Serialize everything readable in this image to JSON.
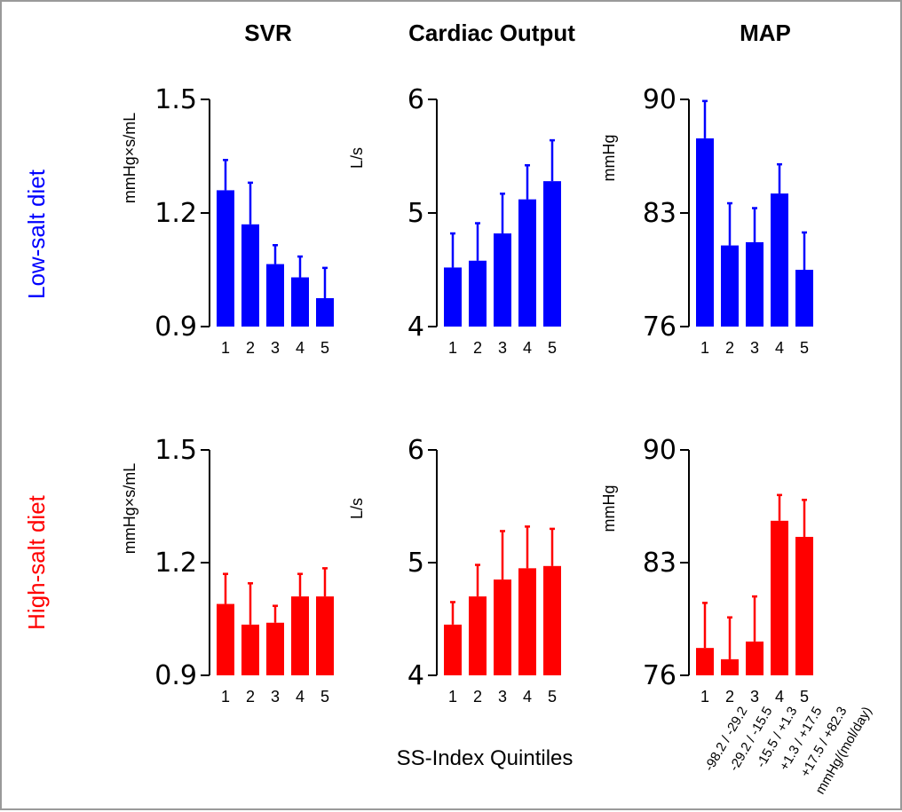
{
  "figure": {
    "column_titles": [
      "SVR",
      "Cardiac Output",
      "MAP"
    ],
    "row_labels": [
      "Low-salt diet",
      "High-salt diet"
    ],
    "x_axis_label": "SS-Index Quintiles",
    "quintile_labels": [
      "-98.2 / -29.2",
      "-29.2 / -15.5",
      "-15.5 / +1.3",
      "+1.3 / +17.5",
      "+17.5 / +82.3",
      "mmHg/(mol/day)"
    ]
  },
  "colors": {
    "low_salt": "#0000ff",
    "high_salt": "#ff0000",
    "axis": "#000000",
    "frame": "#9a9a9a"
  },
  "chart_data": [
    {
      "type": "bar",
      "title": "SVR",
      "row": "Low-salt diet",
      "color": "#0000ff",
      "categories": [
        "1",
        "2",
        "3",
        "4",
        "5"
      ],
      "values": [
        1.26,
        1.17,
        1.065,
        1.03,
        0.975
      ],
      "errors": [
        0.08,
        0.11,
        0.05,
        0.055,
        0.08
      ],
      "ylabel": "mmHg×s/mL",
      "ylim": [
        0.9,
        1.5
      ],
      "yticks": [
        "0.9",
        "1.2",
        "1.5"
      ]
    },
    {
      "type": "bar",
      "title": "Cardiac Output",
      "row": "Low-salt diet",
      "color": "#0000ff",
      "categories": [
        "1",
        "2",
        "3",
        "4",
        "5"
      ],
      "values": [
        4.52,
        4.58,
        4.82,
        5.12,
        5.28
      ],
      "errors": [
        0.3,
        0.33,
        0.35,
        0.3,
        0.36
      ],
      "ylabel": "L/s",
      "ylim": [
        4,
        6
      ],
      "yticks": [
        "4",
        "5",
        "6"
      ]
    },
    {
      "type": "bar",
      "title": "MAP",
      "row": "Low-salt diet",
      "color": "#0000ff",
      "categories": [
        "1",
        "2",
        "3",
        "4",
        "5"
      ],
      "values": [
        87.6,
        81.0,
        81.2,
        84.2,
        79.5
      ],
      "errors": [
        2.3,
        2.6,
        2.1,
        1.8,
        2.3
      ],
      "ylabel": "mmHg",
      "ylim": [
        76,
        90
      ],
      "yticks": [
        "76",
        "83",
        "90"
      ]
    },
    {
      "type": "bar",
      "title": "SVR",
      "row": "High-salt diet",
      "color": "#ff0000",
      "categories": [
        "1",
        "2",
        "3",
        "4",
        "5"
      ],
      "values": [
        1.09,
        1.035,
        1.04,
        1.11,
        1.11
      ],
      "errors": [
        0.08,
        0.11,
        0.045,
        0.06,
        0.075
      ],
      "ylabel": "mmHg×s/mL",
      "ylim": [
        0.9,
        1.5
      ],
      "yticks": [
        "0.9",
        "1.2",
        "1.5"
      ]
    },
    {
      "type": "bar",
      "title": "Cardiac Output",
      "row": "High-salt diet",
      "color": "#ff0000",
      "categories": [
        "1",
        "2",
        "3",
        "4",
        "5"
      ],
      "values": [
        4.45,
        4.7,
        4.85,
        4.95,
        4.97
      ],
      "errors": [
        0.2,
        0.28,
        0.43,
        0.37,
        0.33
      ],
      "ylabel": "L/s",
      "ylim": [
        4,
        6
      ],
      "yticks": [
        "4",
        "5",
        "6"
      ]
    },
    {
      "type": "bar",
      "title": "MAP",
      "row": "High-salt diet",
      "color": "#ff0000",
      "categories": [
        "1",
        "2",
        "3",
        "4",
        "5"
      ],
      "values": [
        77.7,
        77.0,
        78.1,
        85.6,
        84.6
      ],
      "errors": [
        2.8,
        2.6,
        2.8,
        1.6,
        2.3
      ],
      "ylabel": "mmHg",
      "ylim": [
        76,
        90
      ],
      "yticks": [
        "76",
        "83",
        "90"
      ]
    }
  ]
}
